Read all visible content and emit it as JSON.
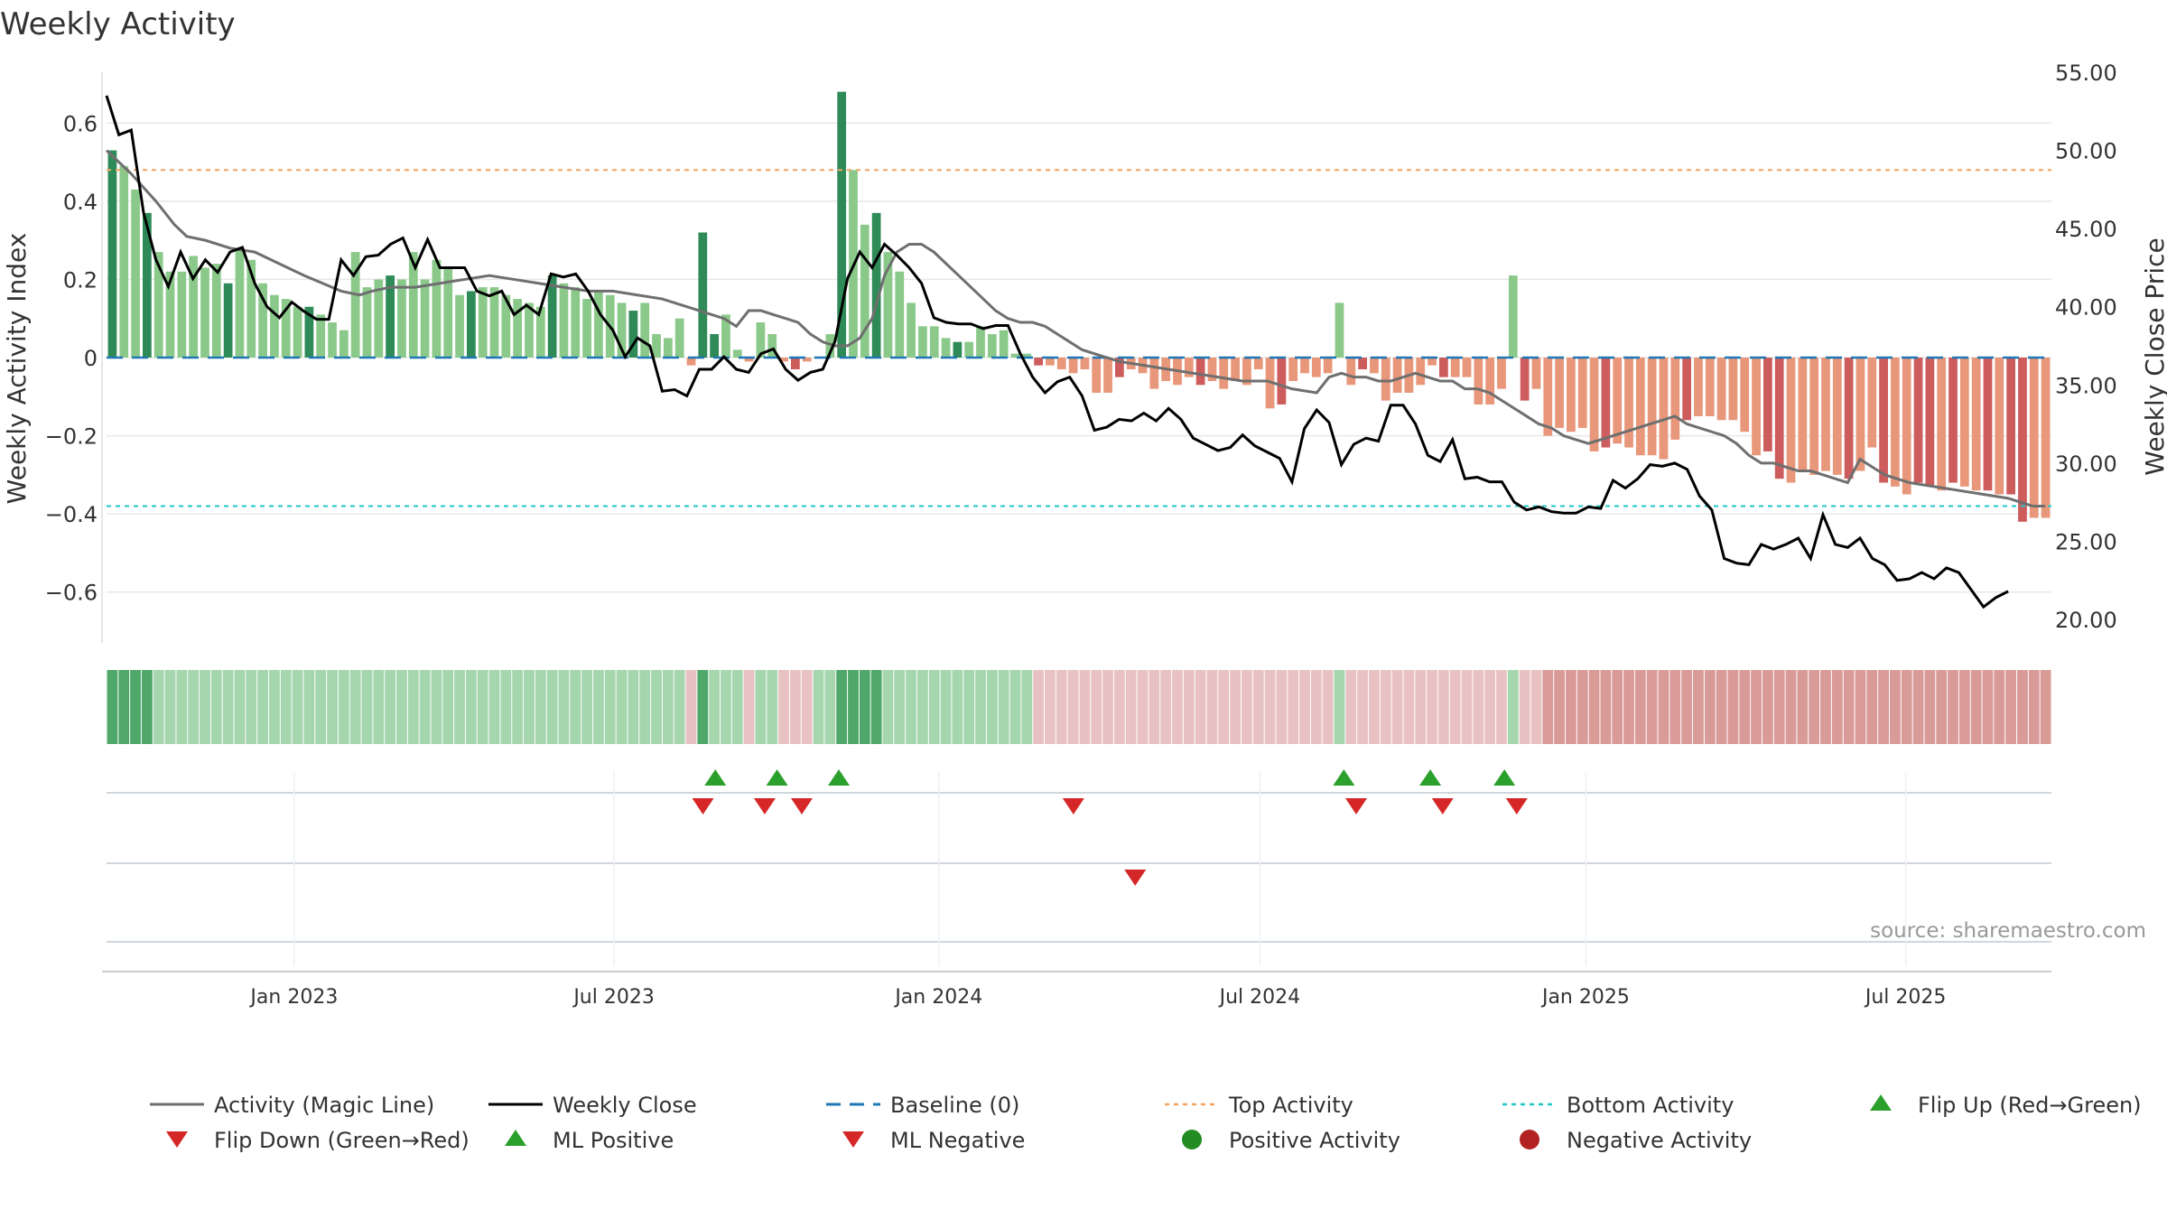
{
  "chart_data": {
    "type": "bar",
    "title": "Weekly Activity",
    "ylabel": "Weekly Activity Index",
    "y2label": "Weekly Close Price",
    "source": "source: sharemaestro.com",
    "ylim": [
      -0.73,
      0.73
    ],
    "yticks": [
      -0.6,
      -0.4,
      -0.2,
      0,
      0.2,
      0.4,
      0.6
    ],
    "ytick_labels": [
      "−0.6",
      "−0.4",
      "−0.2",
      "0",
      "0.2",
      "0.4",
      "0.6"
    ],
    "y2lim": [
      18.5,
      55.0
    ],
    "y2ticks": [
      20,
      25,
      30,
      35,
      40,
      45,
      50,
      55
    ],
    "y2tick_labels": [
      "20.00",
      "25.00",
      "30.00",
      "35.00",
      "40.00",
      "45.00",
      "50.00",
      "55.00"
    ],
    "xlim": [
      0,
      157.5
    ],
    "xticks": [
      15.2,
      41.1,
      67.4,
      93.4,
      119.8,
      145.7
    ],
    "xtick_labels": [
      "Jan 2023",
      "Jul 2023",
      "Jan 2024",
      "Jul 2024",
      "Jan 2025",
      "Jul 2025"
    ],
    "top_activity": 0.48,
    "bottom_activity": -0.38,
    "baseline": 0,
    "activity": [
      0.53,
      0.49,
      0.43,
      0.37,
      0.27,
      0.22,
      0.22,
      0.26,
      0.23,
      0.24,
      0.19,
      0.28,
      0.25,
      0.19,
      0.16,
      0.15,
      0.13,
      0.13,
      0.11,
      0.09,
      0.07,
      0.27,
      0.18,
      0.2,
      0.21,
      0.2,
      0.27,
      0.2,
      0.25,
      0.23,
      0.16,
      0.17,
      0.18,
      0.18,
      0.16,
      0.15,
      0.14,
      0.13,
      0.21,
      0.19,
      0.18,
      0.15,
      0.17,
      0.16,
      0.14,
      0.12,
      0.14,
      0.06,
      0.05,
      0.1,
      -0.02,
      0.32,
      0.06,
      0.11,
      0.02,
      -0.01,
      0.09,
      0.06,
      -0.01,
      -0.03,
      -0.01,
      0.0,
      0.06,
      0.68,
      0.48,
      0.34,
      0.37,
      0.27,
      0.22,
      0.14,
      0.08,
      0.08,
      0.05,
      0.04,
      0.04,
      0.08,
      0.06,
      0.07,
      0.01,
      0.01,
      -0.02,
      -0.02,
      -0.03,
      -0.04,
      -0.03,
      -0.09,
      -0.09,
      -0.05,
      -0.03,
      -0.04,
      -0.08,
      -0.06,
      -0.07,
      -0.05,
      -0.07,
      -0.06,
      -0.08,
      -0.06,
      -0.07,
      -0.03,
      -0.13,
      -0.12,
      -0.06,
      -0.04,
      -0.05,
      -0.04,
      0.14,
      -0.07,
      -0.03,
      -0.04,
      -0.11,
      -0.09,
      -0.09,
      -0.07,
      -0.02,
      -0.05,
      -0.05,
      -0.05,
      -0.12,
      -0.12,
      -0.08,
      0.21,
      -0.11,
      -0.08,
      -0.2,
      -0.18,
      -0.19,
      -0.18,
      -0.24,
      -0.23,
      -0.22,
      -0.23,
      -0.25,
      -0.25,
      -0.26,
      -0.21,
      -0.16,
      -0.15,
      -0.15,
      -0.16,
      -0.16,
      -0.19,
      -0.25,
      -0.24,
      -0.31,
      -0.32,
      -0.29,
      -0.3,
      -0.29,
      -0.3,
      -0.31,
      -0.29,
      -0.23,
      -0.32,
      -0.33,
      -0.35,
      -0.32,
      -0.33,
      -0.34,
      -0.32,
      -0.33,
      -0.34,
      -0.34,
      -0.35,
      -0.35,
      -0.42,
      -0.41,
      -0.41
    ],
    "magic_line": [
      [
        0,
        0.53
      ],
      [
        2,
        0.47
      ],
      [
        4,
        0.4
      ],
      [
        5.5,
        0.34
      ],
      [
        6.5,
        0.31
      ],
      [
        8,
        0.3
      ],
      [
        10,
        0.28
      ],
      [
        12,
        0.27
      ],
      [
        14,
        0.24
      ],
      [
        16,
        0.21
      ],
      [
        17.5,
        0.19
      ],
      [
        19,
        0.17
      ],
      [
        20.5,
        0.16
      ],
      [
        21.5,
        0.17
      ],
      [
        23,
        0.18
      ],
      [
        25,
        0.18
      ],
      [
        27,
        0.19
      ],
      [
        29,
        0.2
      ],
      [
        31,
        0.21
      ],
      [
        33,
        0.2
      ],
      [
        35,
        0.19
      ],
      [
        37,
        0.18
      ],
      [
        39,
        0.17
      ],
      [
        41,
        0.17
      ],
      [
        43,
        0.16
      ],
      [
        45,
        0.15
      ],
      [
        47,
        0.13
      ],
      [
        49,
        0.11
      ],
      [
        50,
        0.1
      ],
      [
        51,
        0.08
      ],
      [
        52,
        0.12
      ],
      [
        53,
        0.12
      ],
      [
        54,
        0.11
      ],
      [
        55,
        0.1
      ],
      [
        56,
        0.09
      ],
      [
        57,
        0.06
      ],
      [
        58,
        0.04
      ],
      [
        59,
        0.03
      ],
      [
        60,
        0.03
      ],
      [
        61,
        0.05
      ],
      [
        62,
        0.1
      ],
      [
        63,
        0.21
      ],
      [
        64,
        0.27
      ],
      [
        65,
        0.29
      ],
      [
        66,
        0.29
      ],
      [
        67,
        0.27
      ],
      [
        68,
        0.24
      ],
      [
        69,
        0.21
      ],
      [
        70,
        0.18
      ],
      [
        71,
        0.15
      ],
      [
        72,
        0.12
      ],
      [
        73,
        0.1
      ],
      [
        74,
        0.09
      ],
      [
        75,
        0.09
      ],
      [
        76,
        0.08
      ],
      [
        77,
        0.06
      ],
      [
        78,
        0.04
      ],
      [
        79,
        0.02
      ],
      [
        80,
        0.01
      ],
      [
        81,
        0.0
      ],
      [
        82,
        -0.01
      ],
      [
        84,
        -0.02
      ],
      [
        86,
        -0.03
      ],
      [
        88,
        -0.04
      ],
      [
        90,
        -0.05
      ],
      [
        92,
        -0.06
      ],
      [
        94,
        -0.06
      ],
      [
        96,
        -0.08
      ],
      [
        98,
        -0.09
      ],
      [
        99,
        -0.05
      ],
      [
        100,
        -0.04
      ],
      [
        101,
        -0.05
      ],
      [
        102,
        -0.05
      ],
      [
        103,
        -0.06
      ],
      [
        104,
        -0.06
      ],
      [
        105,
        -0.05
      ],
      [
        106,
        -0.04
      ],
      [
        107,
        -0.05
      ],
      [
        108,
        -0.06
      ],
      [
        109,
        -0.06
      ],
      [
        110,
        -0.08
      ],
      [
        111,
        -0.08
      ],
      [
        112,
        -0.09
      ],
      [
        113,
        -0.11
      ],
      [
        114,
        -0.13
      ],
      [
        115,
        -0.15
      ],
      [
        116,
        -0.17
      ],
      [
        117,
        -0.18
      ],
      [
        118,
        -0.2
      ],
      [
        119,
        -0.21
      ],
      [
        120,
        -0.22
      ],
      [
        121,
        -0.21
      ],
      [
        122,
        -0.2
      ],
      [
        123,
        -0.19
      ],
      [
        124,
        -0.18
      ],
      [
        125,
        -0.17
      ],
      [
        126,
        -0.16
      ],
      [
        127,
        -0.15
      ],
      [
        128,
        -0.17
      ],
      [
        129,
        -0.18
      ],
      [
        130,
        -0.19
      ],
      [
        131,
        -0.2
      ],
      [
        132,
        -0.22
      ],
      [
        133,
        -0.25
      ],
      [
        134,
        -0.27
      ],
      [
        135,
        -0.27
      ],
      [
        136,
        -0.28
      ],
      [
        137,
        -0.29
      ],
      [
        138,
        -0.29
      ],
      [
        139,
        -0.3
      ],
      [
        140,
        -0.31
      ],
      [
        141,
        -0.32
      ],
      [
        142,
        -0.26
      ],
      [
        143,
        -0.28
      ],
      [
        144,
        -0.3
      ],
      [
        145,
        -0.31
      ],
      [
        146,
        -0.32
      ],
      [
        148,
        -0.33
      ],
      [
        150,
        -0.34
      ],
      [
        152,
        -0.35
      ],
      [
        154,
        -0.36
      ],
      [
        156,
        -0.38
      ],
      [
        157,
        -0.38
      ]
    ],
    "weekly_close": [
      [
        0,
        53.5
      ],
      [
        1,
        51.0
      ],
      [
        2,
        51.3
      ],
      [
        3,
        46.0
      ],
      [
        4,
        43.0
      ],
      [
        5,
        41.3
      ],
      [
        6,
        43.5
      ],
      [
        7,
        41.8
      ],
      [
        8,
        43.0
      ],
      [
        9,
        42.2
      ],
      [
        10,
        43.5
      ],
      [
        11,
        43.8
      ],
      [
        12,
        41.5
      ],
      [
        13,
        40.0
      ],
      [
        14,
        39.3
      ],
      [
        15,
        40.3
      ],
      [
        16,
        39.7
      ],
      [
        17,
        39.2
      ],
      [
        18,
        39.2
      ],
      [
        19,
        43.0
      ],
      [
        20,
        42.0
      ],
      [
        21,
        43.2
      ],
      [
        22,
        43.3
      ],
      [
        23,
        44.0
      ],
      [
        24,
        44.4
      ],
      [
        25,
        42.5
      ],
      [
        26,
        44.3
      ],
      [
        27,
        42.5
      ],
      [
        28,
        42.5
      ],
      [
        29,
        42.5
      ],
      [
        30,
        41.0
      ],
      [
        31,
        40.7
      ],
      [
        32,
        41.0
      ],
      [
        33,
        39.5
      ],
      [
        34,
        40.1
      ],
      [
        35,
        39.5
      ],
      [
        36,
        42.1
      ],
      [
        37,
        41.9
      ],
      [
        38,
        42.1
      ],
      [
        39,
        41.0
      ],
      [
        40,
        39.5
      ],
      [
        41,
        38.5
      ],
      [
        42,
        36.8
      ],
      [
        43,
        38.0
      ],
      [
        44,
        37.5
      ],
      [
        45,
        34.6
      ],
      [
        46,
        34.7
      ],
      [
        47,
        34.3
      ],
      [
        48,
        36.0
      ],
      [
        49,
        36.0
      ],
      [
        50,
        36.8
      ],
      [
        51,
        36.0
      ],
      [
        52,
        35.8
      ],
      [
        53,
        37.0
      ],
      [
        54,
        37.3
      ],
      [
        55,
        36.0
      ],
      [
        56,
        35.3
      ],
      [
        57,
        35.8
      ],
      [
        58,
        36.0
      ],
      [
        59,
        37.8
      ],
      [
        60,
        41.8
      ],
      [
        61,
        43.5
      ],
      [
        62,
        42.5
      ],
      [
        63,
        44.0
      ],
      [
        64,
        43.3
      ],
      [
        65,
        42.5
      ],
      [
        66,
        41.5
      ],
      [
        67,
        39.3
      ],
      [
        68,
        39.0
      ],
      [
        69,
        38.9
      ],
      [
        70,
        38.9
      ],
      [
        71,
        38.6
      ],
      [
        72,
        38.8
      ],
      [
        73,
        38.8
      ],
      [
        74,
        37.0
      ],
      [
        75,
        35.5
      ],
      [
        76,
        34.5
      ],
      [
        77,
        35.2
      ],
      [
        78,
        35.5
      ],
      [
        79,
        34.3
      ],
      [
        80,
        32.1
      ],
      [
        81,
        32.3
      ],
      [
        82,
        32.8
      ],
      [
        83,
        32.7
      ],
      [
        84,
        33.2
      ],
      [
        85,
        32.7
      ],
      [
        86,
        33.5
      ],
      [
        87,
        32.8
      ],
      [
        88,
        31.6
      ],
      [
        89,
        31.2
      ],
      [
        90,
        30.8
      ],
      [
        91,
        31.0
      ],
      [
        92,
        31.8
      ],
      [
        93,
        31.1
      ],
      [
        94,
        30.7
      ],
      [
        95,
        30.3
      ],
      [
        96,
        28.8
      ],
      [
        97,
        32.2
      ],
      [
        98,
        33.4
      ],
      [
        99,
        32.6
      ],
      [
        100,
        29.9
      ],
      [
        101,
        31.2
      ],
      [
        102,
        31.6
      ],
      [
        103,
        31.4
      ],
      [
        104,
        33.7
      ],
      [
        105,
        33.7
      ],
      [
        106,
        32.5
      ],
      [
        107,
        30.5
      ],
      [
        108,
        30.1
      ],
      [
        109,
        31.5
      ],
      [
        110,
        29.0
      ],
      [
        111,
        29.1
      ],
      [
        112,
        28.8
      ],
      [
        113,
        28.8
      ],
      [
        114,
        27.5
      ],
      [
        115,
        27.0
      ],
      [
        116,
        27.2
      ],
      [
        117,
        26.9
      ],
      [
        118,
        26.8
      ],
      [
        119,
        26.8
      ],
      [
        120,
        27.2
      ],
      [
        121,
        27.1
      ],
      [
        122,
        28.9
      ],
      [
        123,
        28.4
      ],
      [
        124,
        29.0
      ],
      [
        125,
        29.9
      ],
      [
        126,
        29.8
      ],
      [
        127,
        30.0
      ],
      [
        128,
        29.6
      ],
      [
        129,
        27.9
      ],
      [
        130,
        27.0
      ],
      [
        131,
        23.9
      ],
      [
        132,
        23.6
      ],
      [
        133,
        23.5
      ],
      [
        134,
        24.8
      ],
      [
        135,
        24.5
      ],
      [
        136,
        24.8
      ],
      [
        137,
        25.2
      ],
      [
        138,
        23.9
      ],
      [
        139,
        26.7
      ],
      [
        140,
        24.8
      ],
      [
        141,
        24.6
      ],
      [
        142,
        25.2
      ],
      [
        143,
        23.9
      ],
      [
        144,
        23.5
      ],
      [
        145,
        22.5
      ],
      [
        146,
        22.6
      ],
      [
        147,
        23.0
      ],
      [
        148,
        22.6
      ],
      [
        149,
        23.3
      ],
      [
        150,
        23.0
      ],
      [
        151,
        21.9
      ],
      [
        152,
        20.8
      ],
      [
        153,
        21.4
      ],
      [
        154,
        21.8
      ]
    ],
    "strip_colors": {
      "strong_pos": "#4fa769",
      "pos": "#a6d6ad",
      "neg": "#e8c2c2",
      "strong_neg": "#d99b98"
    },
    "flip_up": [
      49.3,
      54.3,
      59.3,
      100.2,
      107.2,
      113.2
    ],
    "flip_down": [
      48.3,
      53.3,
      56.3,
      78.3,
      101.2,
      108.2,
      114.2
    ],
    "ml_negative": [
      83.3
    ],
    "colors": {
      "bar_strong_pos": "#2e8b57",
      "bar_pos": "#8bc98b",
      "bar_neg": "#e8977a",
      "bar_strong_neg": "#cd5c5c",
      "magic_line": "#808080",
      "weekly_close": "#000000",
      "baseline": "#1f77b4",
      "top_activity": "#f4a460",
      "bottom_activity": "#20c5c5",
      "flip_up": "#2ca02c",
      "flip_down": "#d62728",
      "positive_activity": "#228b22",
      "negative_activity": "#b22222"
    },
    "legend": [
      {
        "label": "Activity (Magic Line)",
        "kind": "line",
        "color": "#6f6f6f"
      },
      {
        "label": "Weekly Close",
        "kind": "line",
        "color": "#000000"
      },
      {
        "label": "Baseline (0)",
        "kind": "dash",
        "color": "#1f77b4"
      },
      {
        "label": "Top Activity",
        "kind": "dot",
        "color": "#f4a460"
      },
      {
        "label": "Bottom Activity",
        "kind": "dot",
        "color": "#20c5c5"
      },
      {
        "label": "Flip Up (Red→Green)",
        "kind": "up",
        "color": "#2ca02c"
      },
      {
        "label": "Flip Down (Green→Red)",
        "kind": "down",
        "color": "#d62728"
      },
      {
        "label": "ML Positive",
        "kind": "up",
        "color": "#2ca02c"
      },
      {
        "label": "ML Negative",
        "kind": "down",
        "color": "#d62728"
      },
      {
        "label": "Positive Activity",
        "kind": "circle",
        "color": "#228b22"
      },
      {
        "label": "Negative Activity",
        "kind": "circle",
        "color": "#b22222"
      }
    ]
  }
}
